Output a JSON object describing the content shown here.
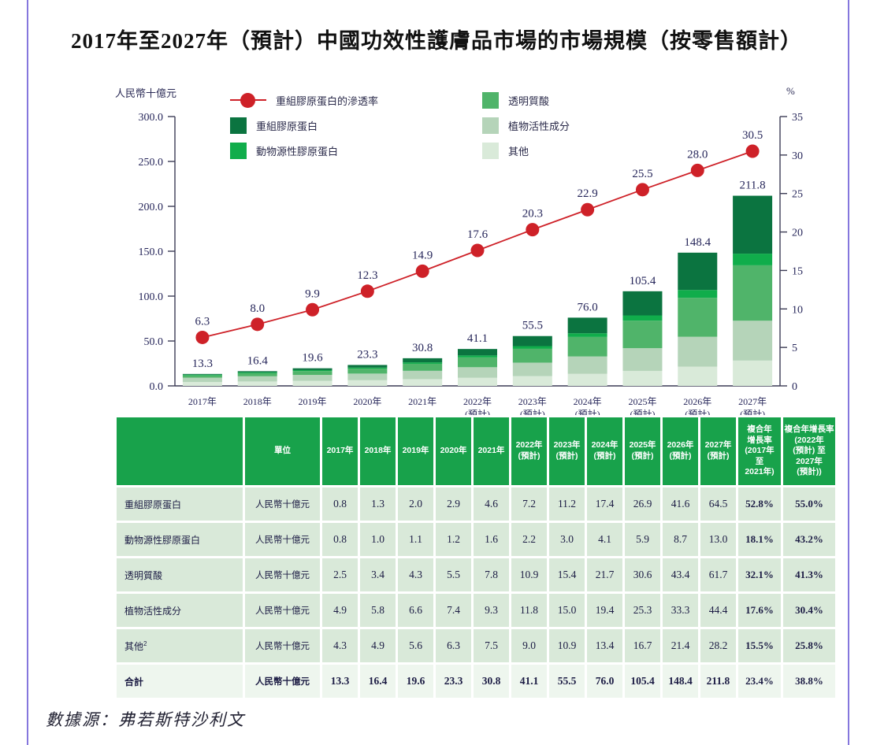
{
  "title": "2017年至2027年（預計）中國功效性護膚品市場的市場規模（按零售額計）",
  "source": "數據源：弗若斯特沙利文",
  "legend": {
    "items_left": [
      {
        "marker": "line",
        "color": "#ce2128",
        "label": "重組膠原蛋白的滲透率"
      },
      {
        "marker": "square",
        "color": "#0b7440",
        "label": "重組膠原蛋白"
      },
      {
        "marker": "square",
        "color": "#10ad4b",
        "label": "動物源性膠原蛋白"
      }
    ],
    "items_right": [
      {
        "marker": "square",
        "color": "#50b46a",
        "label": "透明質酸"
      },
      {
        "marker": "square",
        "color": "#b5d4b9",
        "label": "植物活性成分"
      },
      {
        "marker": "square",
        "color": "#d9ead9",
        "label": "其他"
      }
    ]
  },
  "chart_data": {
    "type": "bar",
    "variant": "stacked-bars-with-percentage-line",
    "categories": [
      "2017年",
      "2018年",
      "2019年",
      "2020年",
      "2021年",
      "2022年",
      "2023年",
      "2024年",
      "2025年",
      "2026年",
      "2027年"
    ],
    "forecast_note": "(預計)",
    "forecast_from_index": 5,
    "left_axis": {
      "label": "人民幣十億元",
      "min": 0,
      "max": 300,
      "step": 50
    },
    "right_axis": {
      "label": "%",
      "min": 0,
      "max": 35,
      "step": 5
    },
    "series": [
      {
        "name": "其他",
        "color": "#d9ead9",
        "values": [
          4.3,
          4.9,
          5.6,
          6.3,
          7.5,
          9.0,
          10.9,
          13.4,
          16.7,
          21.4,
          28.2
        ]
      },
      {
        "name": "植物活性成分",
        "color": "#b5d4b9",
        "values": [
          4.9,
          5.8,
          6.6,
          7.4,
          9.3,
          11.8,
          15.0,
          19.4,
          25.3,
          33.3,
          44.4
        ]
      },
      {
        "name": "透明質酸",
        "color": "#50b46a",
        "values": [
          2.5,
          3.4,
          4.3,
          5.5,
          7.8,
          10.9,
          15.4,
          21.7,
          30.6,
          43.4,
          61.7
        ]
      },
      {
        "name": "動物源性膠原蛋白",
        "color": "#10ad4b",
        "values": [
          0.8,
          1.0,
          1.1,
          1.2,
          1.6,
          2.2,
          3.0,
          4.1,
          5.9,
          8.7,
          13.0
        ]
      },
      {
        "name": "重組膠原蛋白",
        "color": "#0b7440",
        "values": [
          0.8,
          1.3,
          2.0,
          2.9,
          4.6,
          7.2,
          11.2,
          17.4,
          26.9,
          41.6,
          64.5
        ]
      }
    ],
    "totals": [
      13.3,
      16.4,
      19.6,
      23.3,
      30.8,
      41.1,
      55.5,
      76.0,
      105.4,
      148.4,
      211.8
    ],
    "line": {
      "name": "重組膠原蛋白的滲透率",
      "color": "#ce2128",
      "values": [
        6.3,
        8.0,
        9.9,
        12.3,
        14.9,
        17.6,
        20.3,
        22.9,
        25.5,
        28.0,
        30.5
      ]
    }
  },
  "table": {
    "header": [
      "",
      "單位",
      "2017年",
      "2018年",
      "2019年",
      "2020年",
      "2021年",
      "2022年\n(預計)",
      "2023年\n(預計)",
      "2024年\n(預計)",
      "2025年\n(預計)",
      "2026年\n(預計)",
      "2027年\n(預計)",
      "複合年\n增長率\n(2017年\n至\n2021年)",
      "複合年增長率\n(2022年\n(預計) 至\n2027年\n(預計))"
    ],
    "rows": [
      {
        "label": "重組膠原蛋白",
        "sup": "",
        "unit": "人民幣十億元",
        "values": [
          "0.8",
          "1.3",
          "2.0",
          "2.9",
          "4.6",
          "7.2",
          "11.2",
          "17.4",
          "26.9",
          "41.6",
          "64.5"
        ],
        "cagr1": "52.8%",
        "cagr2": "55.0%",
        "total": false
      },
      {
        "label": "動物源性膠原蛋白",
        "sup": "",
        "unit": "人民幣十億元",
        "values": [
          "0.8",
          "1.0",
          "1.1",
          "1.2",
          "1.6",
          "2.2",
          "3.0",
          "4.1",
          "5.9",
          "8.7",
          "13.0"
        ],
        "cagr1": "18.1%",
        "cagr2": "43.2%",
        "total": false
      },
      {
        "label": "透明質酸",
        "sup": "",
        "unit": "人民幣十億元",
        "values": [
          "2.5",
          "3.4",
          "4.3",
          "5.5",
          "7.8",
          "10.9",
          "15.4",
          "21.7",
          "30.6",
          "43.4",
          "61.7"
        ],
        "cagr1": "32.1%",
        "cagr2": "41.3%",
        "total": false
      },
      {
        "label": "植物活性成分",
        "sup": "",
        "unit": "人民幣十億元",
        "values": [
          "4.9",
          "5.8",
          "6.6",
          "7.4",
          "9.3",
          "11.8",
          "15.0",
          "19.4",
          "25.3",
          "33.3",
          "44.4"
        ],
        "cagr1": "17.6%",
        "cagr2": "30.4%",
        "total": false
      },
      {
        "label": "其他",
        "sup": "2",
        "unit": "人民幣十億元",
        "values": [
          "4.3",
          "4.9",
          "5.6",
          "6.3",
          "7.5",
          "9.0",
          "10.9",
          "13.4",
          "16.7",
          "21.4",
          "28.2"
        ],
        "cagr1": "15.5%",
        "cagr2": "25.8%",
        "total": false
      },
      {
        "label": "合計",
        "sup": "",
        "unit": "人民幣十億元",
        "values": [
          "13.3",
          "16.4",
          "19.6",
          "23.3",
          "30.8",
          "41.1",
          "55.5",
          "76.0",
          "105.4",
          "148.4",
          "211.8"
        ],
        "cagr1": "23.4%",
        "cagr2": "38.8%",
        "total": true
      }
    ]
  }
}
